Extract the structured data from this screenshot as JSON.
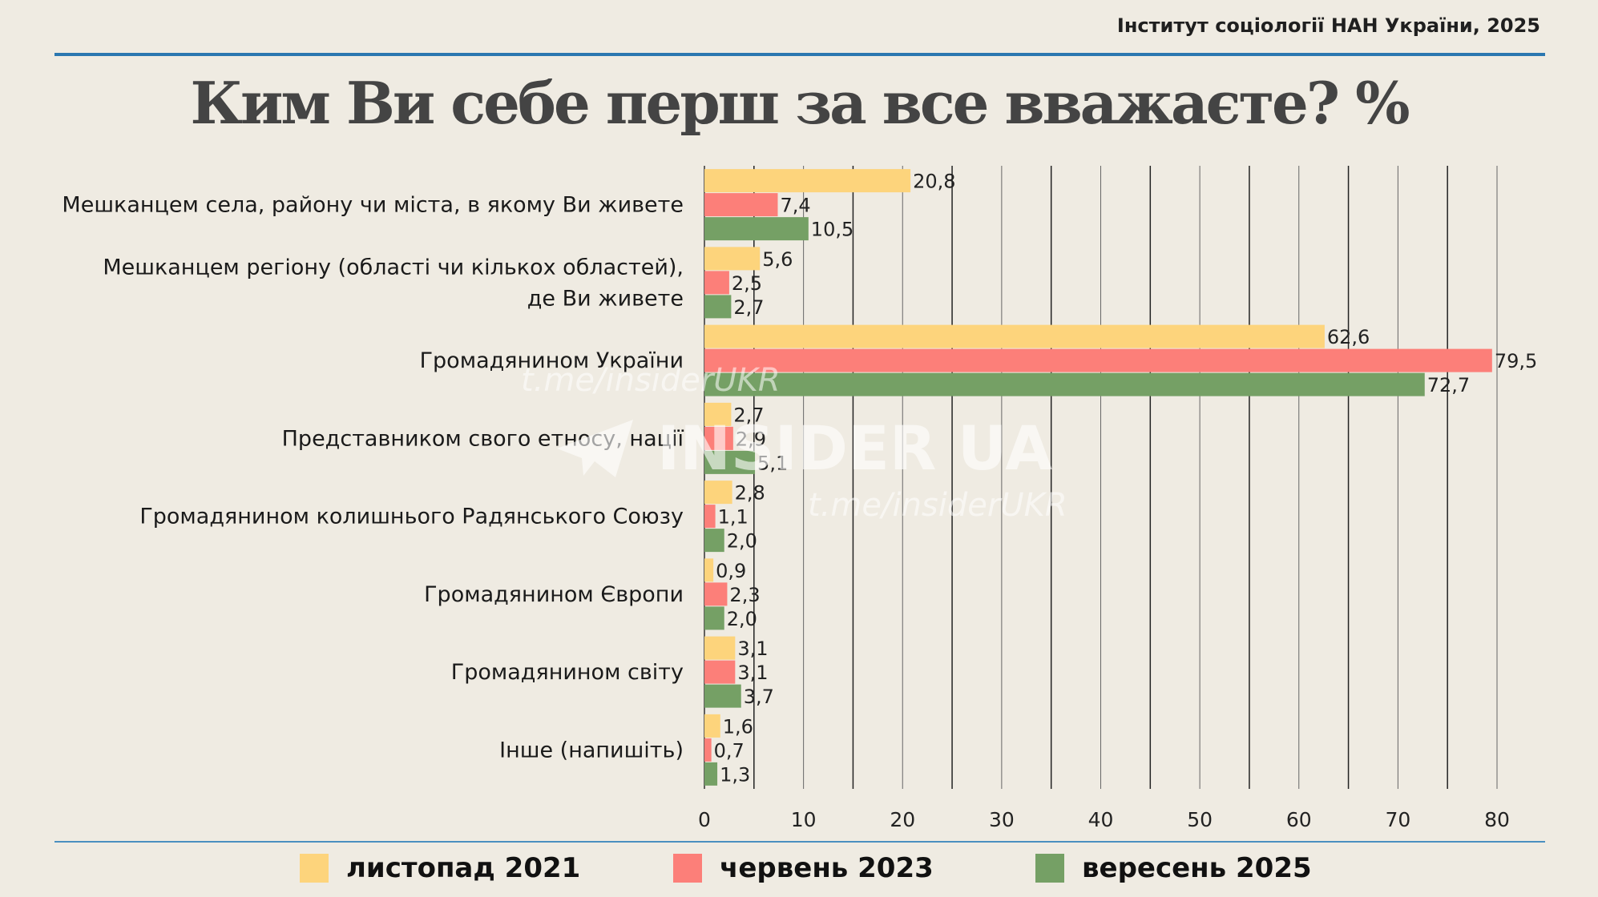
{
  "source": "Інститут соціології НАН України, 2025",
  "title": "Ким Ви себе перш за все вважаєте? %",
  "colors": {
    "series_2021": "#fdd47c",
    "series_2023": "#fc7f79",
    "series_2025": "#75a065",
    "top_rule": "#2b77b0",
    "grid": "#000000"
  },
  "chart_data": {
    "type": "bar",
    "orientation": "horizontal",
    "categories": [
      [
        "Мешканцем села, району чи міста, в якому Ви живете"
      ],
      [
        "Мешканцем регіону (області чи кількох областей),",
        "де Ви живете"
      ],
      [
        "Громадянином України"
      ],
      [
        "Представником свого етносу, нації"
      ],
      [
        "Громадянином колишнього Радянського Союзу"
      ],
      [
        "Громадянином Європи"
      ],
      [
        "Громадянином світу"
      ],
      [
        "Інше (напишіть)"
      ]
    ],
    "series": [
      {
        "name": "листопад 2021",
        "color": "#fdd47c",
        "values": [
          20.8,
          5.6,
          62.6,
          2.7,
          2.8,
          0.9,
          3.1,
          1.6
        ],
        "labels": [
          "20,8",
          "5,6",
          "62,6",
          "2,7",
          "2,8",
          "0,9",
          "3,1",
          "1,6"
        ]
      },
      {
        "name": "червень 2023",
        "color": "#fc7f79",
        "values": [
          7.4,
          2.5,
          79.5,
          2.9,
          1.1,
          2.3,
          3.1,
          0.7
        ],
        "labels": [
          "7,4",
          "2,5",
          "79,5",
          "2,9",
          "1,1",
          "2,3",
          "3,1",
          "0,7"
        ]
      },
      {
        "name": "вересень 2025",
        "color": "#75a065",
        "values": [
          10.5,
          2.7,
          72.7,
          5.1,
          2.0,
          2.0,
          3.7,
          1.3
        ],
        "labels": [
          "10,5",
          "2,7",
          "72,7",
          "5,1",
          "2,0",
          "2,0",
          "3,7",
          "1,3"
        ]
      }
    ],
    "xlim": [
      0,
      80
    ],
    "ticks": [
      0,
      10,
      20,
      30,
      40,
      50,
      60,
      70,
      80
    ],
    "grid": true,
    "legend_position": "bottom"
  },
  "watermark": {
    "brand": "INSIDER UA",
    "url": "t.me/insiderUKR"
  }
}
